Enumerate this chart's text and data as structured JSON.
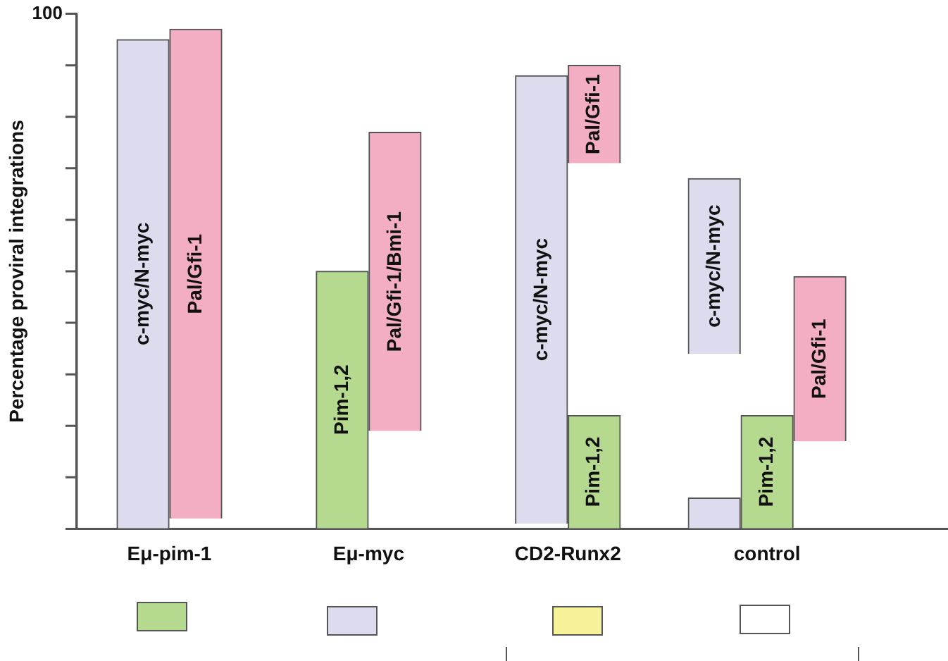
{
  "chart_data": {
    "type": "bar",
    "ylabel": "Percentage proviral integrations",
    "categories": [
      "Eμ-pim-1",
      "Eμ-myc",
      "CD2-Runx2",
      "control"
    ],
    "series": [
      {
        "name": "c-myc/N-myc",
        "color": "#dcdcee",
        "values": [
          95,
          null,
          87,
          34
        ],
        "base": [
          0,
          null,
          1,
          34
        ]
      },
      {
        "color": "#dcdcee",
        "values": [
          null,
          null,
          null,
          6
        ],
        "base": [
          null,
          null,
          null,
          0
        ]
      },
      {
        "name": "Pim-1,2",
        "color": "#b5d98f",
        "values": [
          null,
          50,
          22,
          22
        ],
        "base": [
          null,
          0,
          0,
          0
        ]
      },
      {
        "name": "Pal/Gfi-1",
        "color": "#f4aec4",
        "values": [
          95,
          null,
          19,
          32
        ],
        "base": [
          2,
          null,
          71,
          17
        ]
      },
      {
        "name": "Pal/Gfi-1/Bmi-1",
        "color": "#f4aec4",
        "values": [
          null,
          58,
          null,
          null
        ],
        "base": [
          null,
          19,
          null,
          null
        ]
      }
    ],
    "ylim": [
      0,
      100
    ],
    "yticks": [
      {
        "value": 0,
        "label": null
      },
      {
        "value": 10,
        "label": null
      },
      {
        "value": 20,
        "label": null
      },
      {
        "value": 30,
        "label": null
      },
      {
        "value": 40,
        "label": null
      },
      {
        "value": 50,
        "label": null
      },
      {
        "value": 60,
        "label": null
      },
      {
        "value": 70,
        "label": null
      },
      {
        "value": 80,
        "label": null
      },
      {
        "value": 90,
        "label": null
      },
      100
    ],
    "grid": false,
    "legend": false
  }
}
